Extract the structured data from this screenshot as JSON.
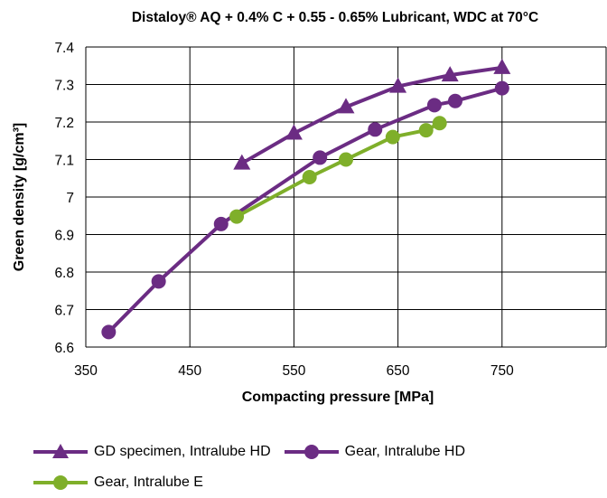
{
  "chart_data": {
    "type": "line",
    "title": "Distaloy® AQ + 0.4% C + 0.55 - 0.65% Lubricant, WDC at 70°C",
    "xlabel": "Compacting pressure [MPa]",
    "ylabel": "Green density [g/cm³]",
    "xlim": [
      350,
      850
    ],
    "ylim": [
      6.6,
      7.4
    ],
    "xticks": [
      350,
      450,
      550,
      650,
      750
    ],
    "yticks": [
      6.6,
      6.7,
      6.8,
      6.9,
      7,
      7.1,
      7.2,
      7.3,
      7.4
    ],
    "xtick_labels": [
      "350",
      "450",
      "550",
      "650",
      "750"
    ],
    "ytick_labels": [
      "6.6",
      "6.7",
      "6.8",
      "6.9",
      "7",
      "7.1",
      "7.2",
      "7.3",
      "7.4"
    ],
    "grid": true,
    "legend_position": "bottom",
    "series": [
      {
        "name": "GD specimen, Intralube HD",
        "marker": "triangle",
        "color": "#6B2C83",
        "x": [
          500,
          550,
          600,
          650,
          700,
          750
        ],
        "y": [
          7.09,
          7.17,
          7.24,
          7.295,
          7.325,
          7.345
        ]
      },
      {
        "name": "Gear, Intralube HD",
        "marker": "circle",
        "color": "#6B2C83",
        "x": [
          372,
          420,
          480,
          575,
          628,
          685,
          705,
          750
        ],
        "y": [
          6.64,
          6.775,
          6.928,
          7.105,
          7.18,
          7.245,
          7.256,
          7.29
        ]
      },
      {
        "name": "Gear, Intralube E",
        "marker": "circle",
        "color": "#7FAF2A",
        "x": [
          495,
          565,
          600,
          645,
          677,
          690
        ],
        "y": [
          6.948,
          7.053,
          7.1,
          7.16,
          7.178,
          7.197
        ]
      }
    ]
  }
}
